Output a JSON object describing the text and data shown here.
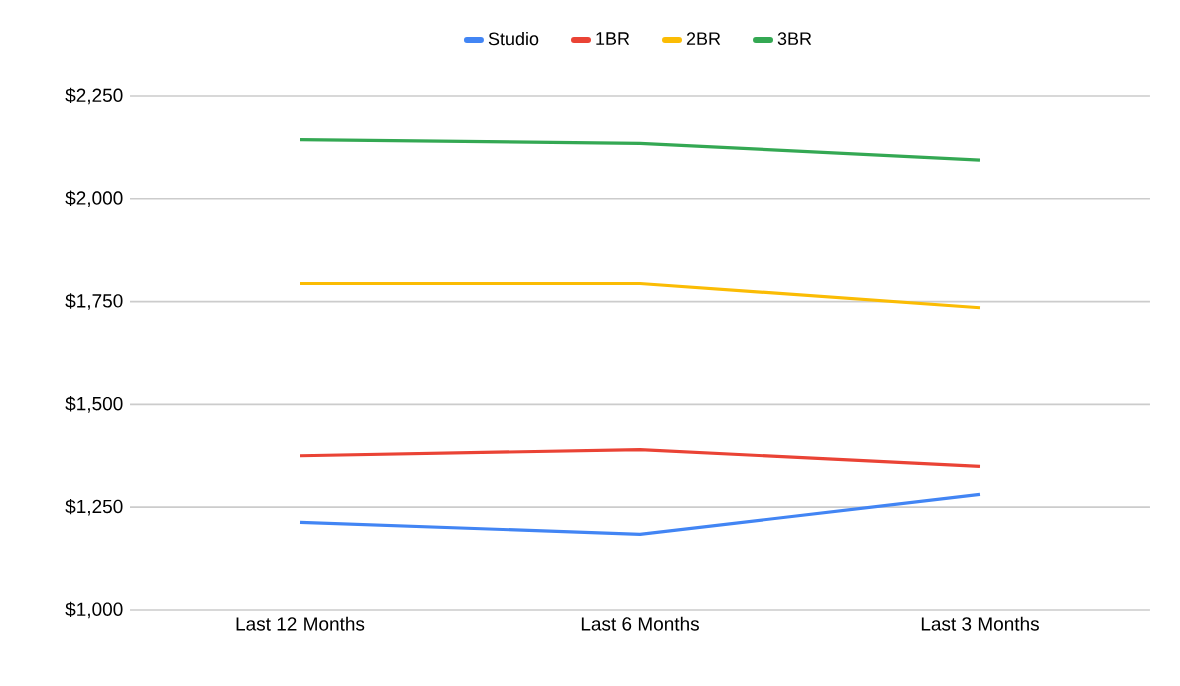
{
  "chart_data": {
    "type": "line",
    "categories": [
      "Last 12 Months",
      "Last 6 Months",
      "Last 3 Months"
    ],
    "series": [
      {
        "name": "Studio",
        "color": "#4285f4",
        "values": [
          1213,
          1184,
          1281
        ]
      },
      {
        "name": "1BR",
        "color": "#ea4335",
        "values": [
          1375,
          1390,
          1349
        ]
      },
      {
        "name": "2BR",
        "color": "#fbbc04",
        "values": [
          1794,
          1794,
          1735
        ]
      },
      {
        "name": "3BR",
        "color": "#34a853",
        "values": [
          2144,
          2135,
          2094
        ]
      }
    ],
    "ylim": [
      1000,
      2250
    ],
    "yticks": [
      {
        "value": 1000,
        "label": "$1,000"
      },
      {
        "value": 1250,
        "label": "$1,250"
      },
      {
        "value": 1500,
        "label": "$1,500"
      },
      {
        "value": 1750,
        "label": "$1,750"
      },
      {
        "value": 2000,
        "label": "$2,000"
      },
      {
        "value": 2250,
        "label": "$2,250"
      }
    ],
    "grid": "y",
    "legend": "top",
    "marker": "none",
    "line_style": "solid"
  }
}
